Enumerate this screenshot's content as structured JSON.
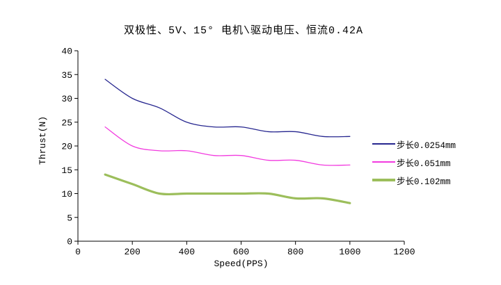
{
  "chart_data": {
    "type": "line",
    "title": "双极性、5V、15° 电机\\驱动电压、恒流0.42A",
    "xlabel": "Speed(PPS)",
    "ylabel": "Thrust(N)",
    "x": [
      100,
      200,
      300,
      400,
      500,
      600,
      700,
      800,
      900,
      1000
    ],
    "series": [
      {
        "name": "步长0.0254mm",
        "color": "#26268F",
        "line_width": 1.3,
        "values": [
          34,
          30,
          28,
          25,
          24,
          24,
          23,
          23,
          22,
          22
        ]
      },
      {
        "name": "步长0.051mm",
        "color": "#F23ADF",
        "line_width": 1.3,
        "values": [
          24,
          20,
          19,
          19,
          18,
          18,
          17,
          17,
          16,
          16
        ]
      },
      {
        "name": "步长0.102mm",
        "color": "#9CBE5B",
        "line_width": 3.2,
        "values": [
          14,
          12,
          10,
          10,
          10,
          10,
          10,
          9,
          9,
          8
        ]
      }
    ],
    "xlim": [
      0,
      1200
    ],
    "ylim": [
      0,
      40
    ],
    "xticks": [
      0,
      200,
      400,
      600,
      800,
      1000,
      1200
    ],
    "yticks": [
      0,
      5,
      10,
      15,
      20,
      25,
      30,
      35,
      40
    ],
    "grid": false,
    "legend_position": "right",
    "line_smoothing": true,
    "axis_color": "#000000",
    "background_color": "#FFFFFF"
  }
}
